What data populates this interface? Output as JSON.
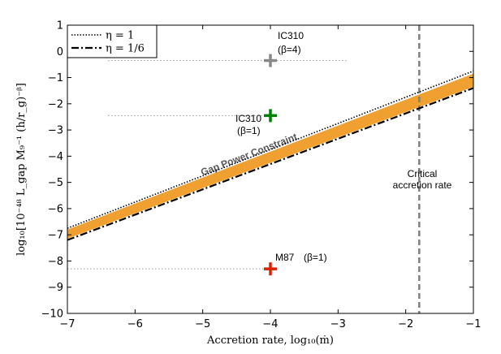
{
  "chart_data": {
    "type": "line",
    "xlabel": "Accretion rate, log₁₀(ṁ)",
    "ylabel": "log₁₀[10⁻⁴⁸ L_gap M₉⁻¹ (h/r_g)⁻ᵝ]",
    "xlim": [
      -7,
      -1
    ],
    "ylim": [
      -10,
      1
    ],
    "xticks": [
      "−7",
      "−6",
      "−5",
      "−4",
      "−3",
      "−2",
      "−1"
    ],
    "xtick_values": [
      -7,
      -6,
      -5,
      -4,
      -3,
      -2,
      -1
    ],
    "yticks": [
      "−10",
      "−9",
      "−8",
      "−7",
      "−6",
      "−5",
      "−4",
      "−3",
      "−2",
      "−1",
      "0",
      "1"
    ],
    "ytick_values": [
      -10,
      -9,
      -8,
      -7,
      -6,
      -5,
      -4,
      -3,
      -2,
      -1,
      0,
      1
    ],
    "legend": {
      "location": "top-left",
      "entries": [
        {
          "label": "η = 1",
          "style": "dotted"
        },
        {
          "label": "η = 1/6",
          "style": "dash-dot"
        }
      ]
    },
    "series": [
      {
        "name": "η = 1",
        "style": "dotted",
        "x": [
          -7,
          -1
        ],
        "y": [
          -6.75,
          -0.75
        ]
      },
      {
        "name": "η = 1/6",
        "style": "dash-dot",
        "x": [
          -7,
          -1
        ],
        "y": [
          -7.2,
          -1.4
        ]
      }
    ],
    "band": {
      "label": "Gap Power Constraint",
      "color": "#f0a030",
      "x": [
        -7,
        -1
      ],
      "y_upper": [
        -6.8,
        -0.85
      ],
      "y_lower": [
        -7.15,
        -1.35
      ]
    },
    "critical_line": {
      "x": -1.8,
      "label_line1": "Critical",
      "label_line2": "accretion rate",
      "color": "#808080"
    },
    "points": [
      {
        "name": "IC310",
        "sub": "(β=4)",
        "x": -4,
        "y": -0.35,
        "color": "#888888",
        "hline_x": [
          -6.4,
          -2.85
        ]
      },
      {
        "name": "IC310",
        "sub": "(β=1)",
        "x": -4,
        "y": -2.45,
        "color": "#008000",
        "hline_x": [
          -6.4,
          -3.9
        ]
      },
      {
        "name": "M87",
        "sub": "(β=1)",
        "x": -4,
        "y": -8.3,
        "color": "#dd2000",
        "hline_x": [
          -7,
          -4
        ]
      }
    ]
  }
}
